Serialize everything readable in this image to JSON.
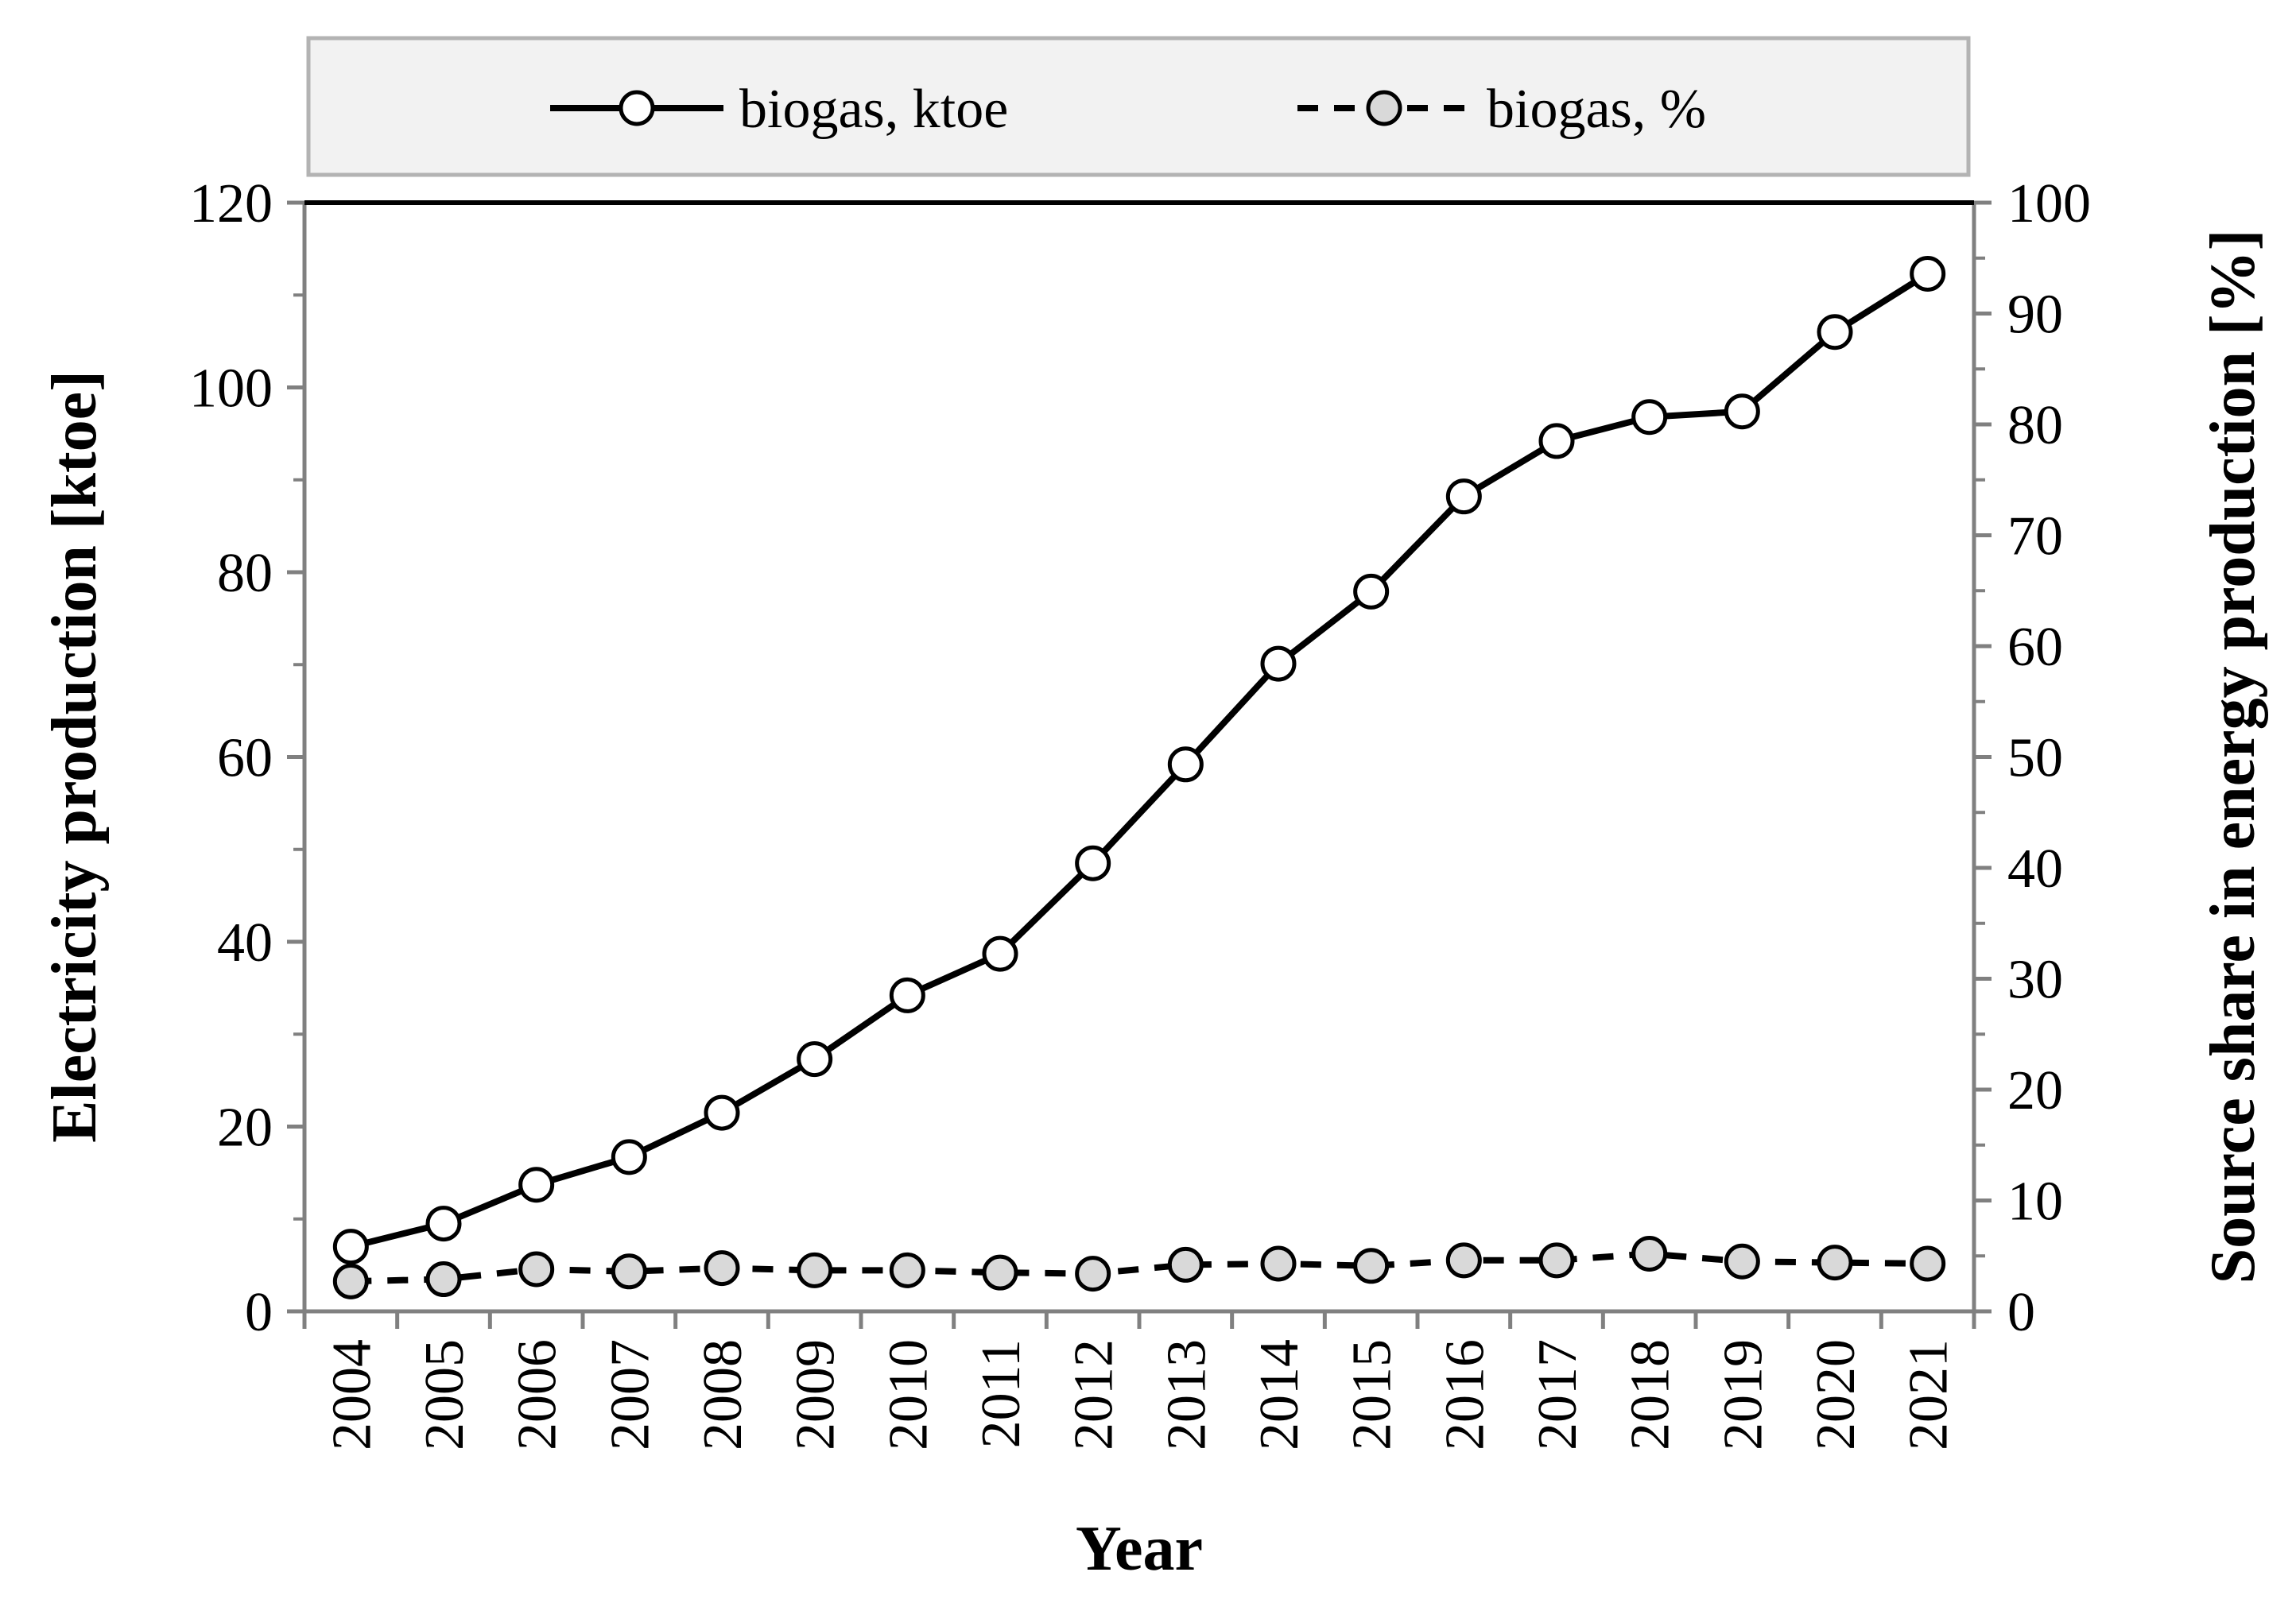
{
  "chart_data": {
    "type": "line",
    "x": [
      "2004",
      "2005",
      "2006",
      "2007",
      "2008",
      "2009",
      "2010",
      "2011",
      "2012",
      "2013",
      "2014",
      "2015",
      "2016",
      "2017",
      "2018",
      "2019",
      "2020",
      "2021"
    ],
    "series": [
      {
        "name": "biogas, ktoe",
        "axis": "left",
        "line_style": "solid",
        "marker_fill": "#ffffff",
        "values": [
          7.0,
          9.5,
          13.7,
          16.7,
          21.5,
          27.3,
          34.2,
          38.7,
          48.5,
          59.2,
          70.1,
          77.9,
          88.2,
          94.2,
          96.8,
          97.4,
          106.0,
          112.3
        ]
      },
      {
        "name": "biogas, %",
        "axis": "right",
        "line_style": "dashed",
        "marker_fill": "#d9d9d9",
        "values": [
          2.7,
          2.9,
          3.8,
          3.6,
          3.9,
          3.7,
          3.7,
          3.5,
          3.4,
          4.2,
          4.3,
          4.1,
          4.6,
          4.6,
          5.2,
          4.5,
          4.4,
          4.3
        ]
      }
    ],
    "xlabel": "Year",
    "ylabel": "Electricity production  [ktoe]",
    "y2label": "Source share in energy production [%]",
    "ylim": [
      0,
      120
    ],
    "y2lim": [
      0,
      100
    ],
    "yticks": [
      "0",
      "20",
      "40",
      "60",
      "80",
      "100",
      "120"
    ],
    "y2ticks": [
      "0",
      "10",
      "20",
      "30",
      "40",
      "50",
      "60",
      "70",
      "80",
      "90",
      "100"
    ],
    "grid": false,
    "legend_position": "top"
  },
  "colors": {
    "line": "#000000",
    "legend_background": "#f2f2f2",
    "legend_border": "#b3b3b3",
    "axis_frame": "#808080",
    "marker_open": "#ffffff",
    "marker_gray": "#d9d9d9"
  }
}
